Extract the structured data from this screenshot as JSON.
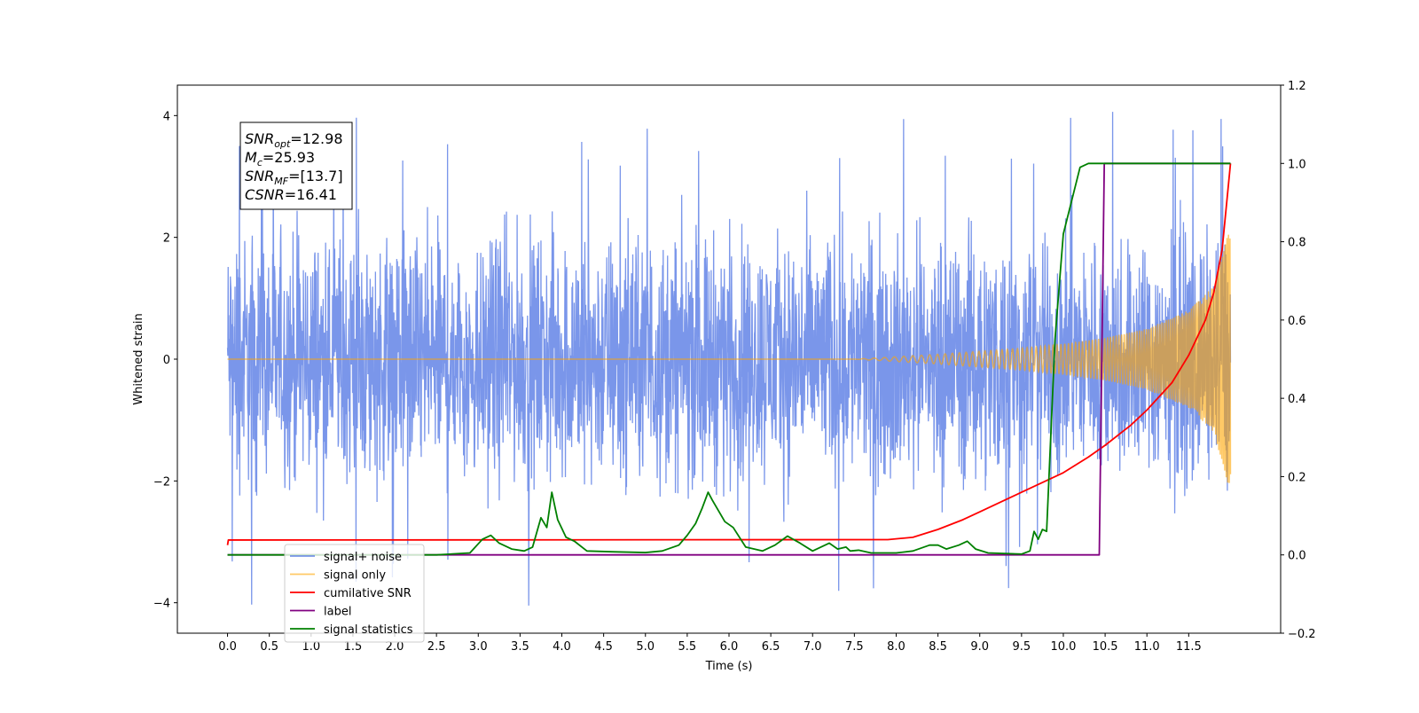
{
  "chart_data": {
    "type": "line",
    "title": "",
    "xlabel": "Time (s)",
    "ylabel": "Whitened strain",
    "y2label": "",
    "xlim": [
      -0.6,
      12.6
    ],
    "ylim": [
      -4.5,
      4.5
    ],
    "y2lim": [
      -0.2,
      1.2
    ],
    "grid": false,
    "legend_position": "lower-left",
    "x_ticks": [
      0.0,
      0.5,
      1.0,
      1.5,
      2.0,
      2.5,
      3.0,
      3.5,
      4.0,
      4.5,
      5.0,
      5.5,
      6.0,
      6.5,
      7.0,
      7.5,
      8.0,
      8.5,
      9.0,
      9.5,
      10.0,
      10.5,
      11.0,
      11.5
    ],
    "x_tick_labels": [
      "0.0",
      "0.5",
      "1.0",
      "1.5",
      "2.0",
      "2.5",
      "3.0",
      "3.5",
      "4.0",
      "4.5",
      "5.0",
      "5.5",
      "6.0",
      "6.5",
      "7.0",
      "7.5",
      "8.0",
      "8.5",
      "9.0",
      "9.5",
      "10.0",
      "10.5",
      "11.0",
      "11.5"
    ],
    "y_ticks": [
      -4,
      -2,
      0,
      2,
      4
    ],
    "y_tick_labels": [
      "−4",
      "−2",
      "0",
      "2",
      "4"
    ],
    "y2_ticks": [
      -0.2,
      0.0,
      0.2,
      0.4,
      0.6,
      0.8,
      1.0,
      1.2
    ],
    "y2_tick_labels": [
      "−0.2",
      "0.0",
      "0.2",
      "0.4",
      "0.6",
      "0.8",
      "1.0",
      "1.2"
    ],
    "annotation": {
      "lines": [
        {
          "base": "SNR",
          "sub": "opt",
          "value": "=12.98"
        },
        {
          "base": "M",
          "sub": "c",
          "value": "=25.93"
        },
        {
          "base": "SNR",
          "sub": "MF",
          "value": "=[13.7]"
        },
        {
          "base": "CSNR",
          "sub": "",
          "value": "=16.41"
        }
      ]
    },
    "series": [
      {
        "name": "signal+ noise",
        "axis": "left",
        "color": "#4169e1",
        "opacity": 0.7,
        "style": "noise",
        "x_range": [
          0.0,
          12.0
        ],
        "typical_range": [
          -2.2,
          2.3
        ],
        "extreme_range": [
          -4.05,
          4.13
        ]
      },
      {
        "name": "signal only",
        "axis": "left",
        "color": "#ffa500",
        "opacity": 0.6,
        "style": "chirp",
        "x": [
          0.0,
          7.5,
          8.0,
          8.5,
          9.0,
          9.5,
          10.0,
          10.5,
          11.0,
          11.5,
          11.8,
          12.0
        ],
        "envelope": [
          0.0,
          0.0,
          0.04,
          0.08,
          0.13,
          0.18,
          0.25,
          0.35,
          0.5,
          0.8,
          1.2,
          2.2
        ]
      },
      {
        "name": "cumilative SNR",
        "axis": "right",
        "color": "#ff0000",
        "x": [
          0.0,
          0.01,
          7.9,
          8.2,
          8.5,
          8.8,
          9.0,
          9.5,
          10.0,
          10.3,
          10.5,
          10.8,
          11.0,
          11.3,
          11.5,
          11.7,
          11.8,
          11.9,
          12.0
        ],
        "values": [
          0.025,
          0.038,
          0.039,
          0.045,
          0.065,
          0.09,
          0.11,
          0.16,
          0.21,
          0.25,
          0.28,
          0.33,
          0.37,
          0.44,
          0.51,
          0.6,
          0.67,
          0.78,
          1.0
        ]
      },
      {
        "name": "label",
        "axis": "right",
        "color": "#800080",
        "x": [
          0.0,
          10.43,
          10.49,
          12.0
        ],
        "values": [
          0.0,
          0.0,
          1.0,
          1.0
        ]
      },
      {
        "name": "signal statistics",
        "axis": "right",
        "color": "#008000",
        "x": [
          0.0,
          1.0,
          2.0,
          2.5,
          2.9,
          3.05,
          3.15,
          3.25,
          3.4,
          3.55,
          3.65,
          3.75,
          3.82,
          3.88,
          3.95,
          4.05,
          4.15,
          4.3,
          4.6,
          5.0,
          5.2,
          5.4,
          5.5,
          5.6,
          5.68,
          5.75,
          5.8,
          5.95,
          6.05,
          6.2,
          6.4,
          6.55,
          6.7,
          6.85,
          7.0,
          7.2,
          7.3,
          7.4,
          7.45,
          7.55,
          7.7,
          8.0,
          8.2,
          8.4,
          8.5,
          8.6,
          8.75,
          8.85,
          8.95,
          9.1,
          9.5,
          9.6,
          9.65,
          9.7,
          9.75,
          9.8,
          9.9,
          10.0,
          10.2,
          10.3,
          10.5,
          11.0,
          12.0
        ],
        "values": [
          0.0,
          0.0,
          0.0,
          0.0,
          0.005,
          0.04,
          0.05,
          0.03,
          0.015,
          0.01,
          0.02,
          0.095,
          0.07,
          0.16,
          0.09,
          0.045,
          0.035,
          0.01,
          0.008,
          0.006,
          0.01,
          0.025,
          0.05,
          0.08,
          0.12,
          0.16,
          0.14,
          0.085,
          0.07,
          0.02,
          0.01,
          0.025,
          0.048,
          0.03,
          0.01,
          0.03,
          0.015,
          0.02,
          0.01,
          0.012,
          0.005,
          0.005,
          0.01,
          0.025,
          0.025,
          0.015,
          0.025,
          0.035,
          0.015,
          0.005,
          0.002,
          0.01,
          0.06,
          0.04,
          0.065,
          0.06,
          0.55,
          0.82,
          0.99,
          1.0,
          1.0,
          1.0,
          1.0
        ]
      }
    ]
  }
}
